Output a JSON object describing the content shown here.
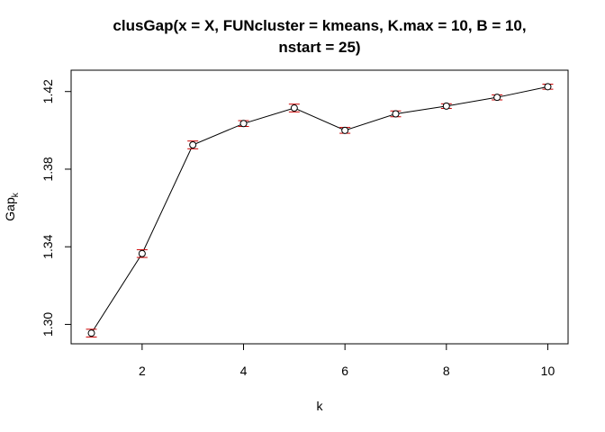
{
  "chart_data": {
    "type": "line",
    "title_lines": [
      "clusGap(x = X, FUNcluster = kmeans, K.max = 10, B = 10,",
      "nstart = 25)"
    ],
    "xlabel": "k",
    "ylabel_main": "Gap",
    "ylabel_subscript": "k",
    "xlim": [
      0.6,
      10.4
    ],
    "ylim": [
      1.29,
      1.431
    ],
    "x_ticks": [
      2,
      4,
      6,
      8,
      10
    ],
    "y_ticks": [
      1.3,
      1.34,
      1.38,
      1.42
    ],
    "x_tick_labels": [
      "2",
      "4",
      "6",
      "8",
      "10"
    ],
    "y_tick_labels": [
      "1.30",
      "1.34",
      "1.38",
      "1.42"
    ],
    "series": [
      {
        "x": [
          1,
          2,
          3,
          4,
          5,
          6,
          7,
          8,
          9,
          10
        ],
        "values": [
          1.2955,
          1.3365,
          1.3925,
          1.4035,
          1.4115,
          1.4,
          1.4085,
          1.4125,
          1.417,
          1.4225
        ],
        "error_lower": [
          1.2935,
          1.3345,
          1.3905,
          1.402,
          1.4095,
          1.3985,
          1.407,
          1.4113,
          1.4157,
          1.4212
        ],
        "error_upper": [
          1.2975,
          1.3385,
          1.3945,
          1.405,
          1.4135,
          1.4015,
          1.41,
          1.4137,
          1.4183,
          1.4238
        ]
      }
    ],
    "grid": false,
    "line_color": "#000000",
    "marker_color": "#000000",
    "errorbar_color": "#cc0000"
  }
}
